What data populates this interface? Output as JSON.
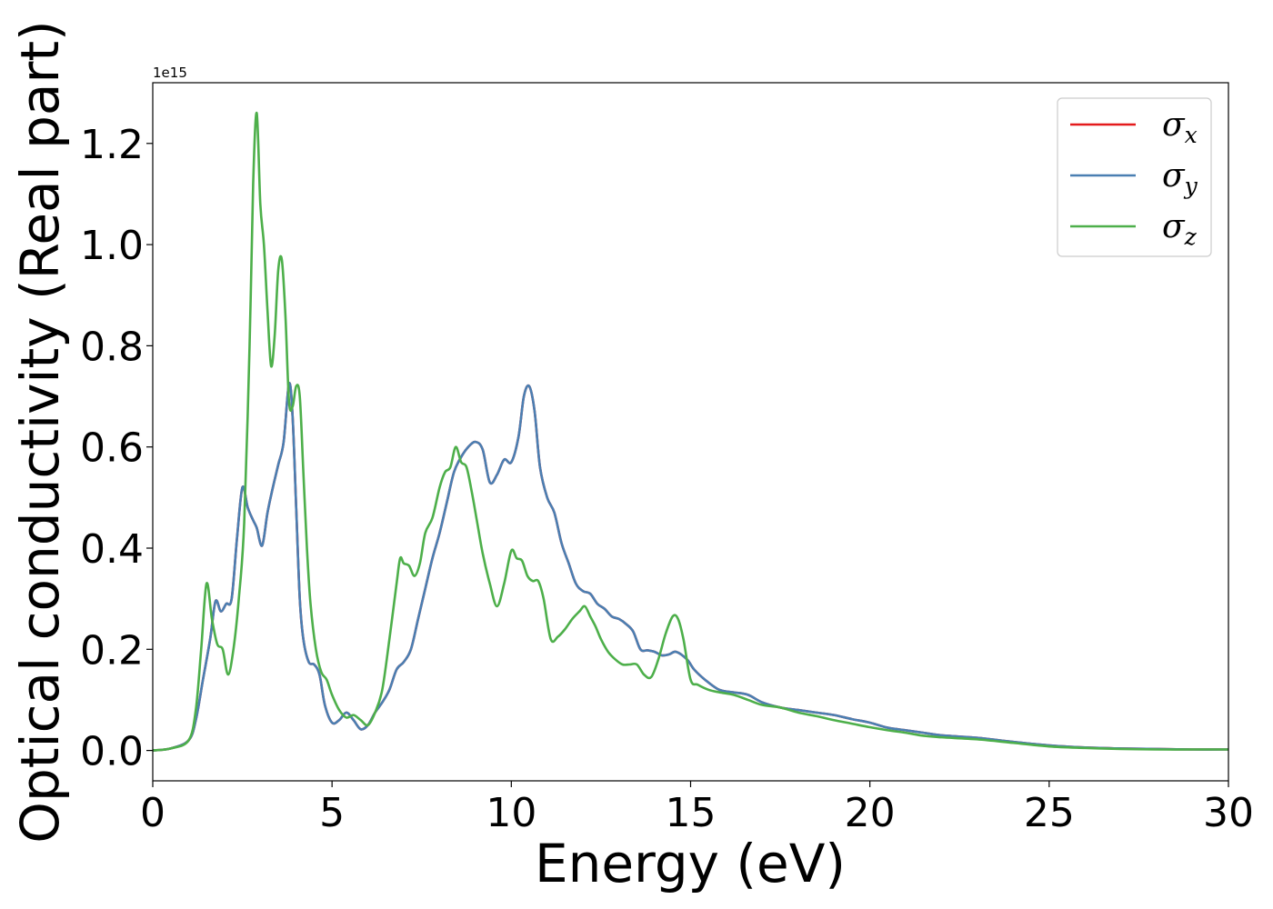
{
  "chart_data": {
    "type": "line",
    "title": "",
    "xlabel": "Energy (eV)",
    "ylabel": "Optical conductivity (Real part)",
    "y_offset_label": "1e15",
    "xlim": [
      0,
      30
    ],
    "ylim": [
      -0.06,
      1.32
    ],
    "x_ticks": [
      0,
      5,
      10,
      15,
      20,
      25,
      30
    ],
    "y_ticks": [
      0.0,
      0.2,
      0.4,
      0.6,
      0.8,
      1.0,
      1.2
    ],
    "x_tick_labels": [
      "0",
      "5",
      "10",
      "15",
      "20",
      "25",
      "30"
    ],
    "y_tick_labels": [
      "0.0",
      "0.2",
      "0.4",
      "0.6",
      "0.8",
      "1.0",
      "1.2"
    ],
    "grid": false,
    "legend_position": "top-right",
    "series": [
      {
        "name": "σx",
        "symbol": "σ",
        "subscript": "x",
        "color": "#e41a1c",
        "x": [
          0,
          0.5,
          1.0,
          1.2,
          1.4,
          1.6,
          1.75,
          1.9,
          2.05,
          2.2,
          2.35,
          2.5,
          2.65,
          2.8,
          2.9,
          3.05,
          3.2,
          3.35,
          3.5,
          3.65,
          3.8,
          3.9,
          4.0,
          4.1,
          4.2,
          4.35,
          4.5,
          4.65,
          4.8,
          5.0,
          5.2,
          5.4,
          5.6,
          5.8,
          6.0,
          6.2,
          6.4,
          6.6,
          6.8,
          7.0,
          7.2,
          7.4,
          7.6,
          7.8,
          8.0,
          8.2,
          8.4,
          8.6,
          8.8,
          9.0,
          9.2,
          9.4,
          9.6,
          9.8,
          10.0,
          10.2,
          10.35,
          10.5,
          10.65,
          10.8,
          11.0,
          11.2,
          11.4,
          11.6,
          11.8,
          12.0,
          12.2,
          12.4,
          12.6,
          12.8,
          13.0,
          13.2,
          13.4,
          13.6,
          13.8,
          14.0,
          14.2,
          14.4,
          14.6,
          14.9,
          15.1,
          15.4,
          15.8,
          16.2,
          16.6,
          17.0,
          17.5,
          18.0,
          18.5,
          19.0,
          19.5,
          20.0,
          20.5,
          21.0,
          21.5,
          22.0,
          23.0,
          24.0,
          25.0,
          26.0,
          27.0,
          28.0,
          29.0,
          30.0
        ],
        "values": [
          0.0,
          0.004,
          0.02,
          0.06,
          0.14,
          0.22,
          0.295,
          0.275,
          0.29,
          0.3,
          0.42,
          0.52,
          0.48,
          0.455,
          0.44,
          0.405,
          0.47,
          0.52,
          0.565,
          0.61,
          0.725,
          0.66,
          0.48,
          0.3,
          0.22,
          0.175,
          0.17,
          0.15,
          0.09,
          0.055,
          0.06,
          0.075,
          0.06,
          0.042,
          0.05,
          0.075,
          0.095,
          0.12,
          0.16,
          0.175,
          0.2,
          0.26,
          0.32,
          0.38,
          0.43,
          0.49,
          0.55,
          0.58,
          0.6,
          0.61,
          0.595,
          0.53,
          0.545,
          0.575,
          0.57,
          0.62,
          0.7,
          0.72,
          0.67,
          0.56,
          0.5,
          0.47,
          0.41,
          0.37,
          0.33,
          0.315,
          0.31,
          0.29,
          0.28,
          0.265,
          0.26,
          0.25,
          0.235,
          0.2,
          0.198,
          0.195,
          0.188,
          0.19,
          0.195,
          0.18,
          0.16,
          0.14,
          0.12,
          0.115,
          0.11,
          0.095,
          0.085,
          0.08,
          0.075,
          0.07,
          0.062,
          0.055,
          0.045,
          0.04,
          0.035,
          0.03,
          0.025,
          0.017,
          0.01,
          0.006,
          0.004,
          0.003,
          0.002,
          0.002
        ]
      },
      {
        "name": "σy",
        "symbol": "σ",
        "subscript": "y",
        "color": "#4a7fb2",
        "x": [
          0,
          0.5,
          1.0,
          1.2,
          1.4,
          1.6,
          1.75,
          1.9,
          2.05,
          2.2,
          2.35,
          2.5,
          2.65,
          2.8,
          2.9,
          3.05,
          3.2,
          3.35,
          3.5,
          3.65,
          3.8,
          3.9,
          4.0,
          4.1,
          4.2,
          4.35,
          4.5,
          4.65,
          4.8,
          5.0,
          5.2,
          5.4,
          5.6,
          5.8,
          6.0,
          6.2,
          6.4,
          6.6,
          6.8,
          7.0,
          7.2,
          7.4,
          7.6,
          7.8,
          8.0,
          8.2,
          8.4,
          8.6,
          8.8,
          9.0,
          9.2,
          9.4,
          9.6,
          9.8,
          10.0,
          10.2,
          10.35,
          10.5,
          10.65,
          10.8,
          11.0,
          11.2,
          11.4,
          11.6,
          11.8,
          12.0,
          12.2,
          12.4,
          12.6,
          12.8,
          13.0,
          13.2,
          13.4,
          13.6,
          13.8,
          14.0,
          14.2,
          14.4,
          14.6,
          14.9,
          15.1,
          15.4,
          15.8,
          16.2,
          16.6,
          17.0,
          17.5,
          18.0,
          18.5,
          19.0,
          19.5,
          20.0,
          20.5,
          21.0,
          21.5,
          22.0,
          23.0,
          24.0,
          25.0,
          26.0,
          27.0,
          28.0,
          29.0,
          30.0
        ],
        "values": [
          0.0,
          0.004,
          0.02,
          0.06,
          0.14,
          0.22,
          0.295,
          0.275,
          0.29,
          0.3,
          0.42,
          0.52,
          0.48,
          0.455,
          0.44,
          0.405,
          0.47,
          0.52,
          0.565,
          0.61,
          0.725,
          0.66,
          0.48,
          0.3,
          0.22,
          0.175,
          0.17,
          0.15,
          0.09,
          0.055,
          0.06,
          0.075,
          0.06,
          0.042,
          0.05,
          0.075,
          0.095,
          0.12,
          0.16,
          0.175,
          0.2,
          0.26,
          0.32,
          0.38,
          0.43,
          0.49,
          0.55,
          0.58,
          0.6,
          0.61,
          0.595,
          0.53,
          0.545,
          0.575,
          0.57,
          0.62,
          0.7,
          0.72,
          0.67,
          0.56,
          0.5,
          0.47,
          0.41,
          0.37,
          0.33,
          0.315,
          0.31,
          0.29,
          0.28,
          0.265,
          0.26,
          0.25,
          0.235,
          0.2,
          0.198,
          0.195,
          0.188,
          0.19,
          0.195,
          0.18,
          0.16,
          0.14,
          0.12,
          0.115,
          0.11,
          0.095,
          0.085,
          0.08,
          0.075,
          0.07,
          0.062,
          0.055,
          0.045,
          0.04,
          0.035,
          0.03,
          0.025,
          0.017,
          0.01,
          0.006,
          0.004,
          0.003,
          0.002,
          0.002
        ]
      },
      {
        "name": "σz",
        "symbol": "σ",
        "subscript": "z",
        "color": "#4daf4a",
        "x": [
          0,
          0.5,
          1.0,
          1.2,
          1.35,
          1.5,
          1.65,
          1.8,
          1.95,
          2.1,
          2.25,
          2.4,
          2.55,
          2.7,
          2.8,
          2.9,
          3.0,
          3.1,
          3.2,
          3.3,
          3.4,
          3.5,
          3.6,
          3.7,
          3.8,
          3.9,
          4.0,
          4.1,
          4.2,
          4.3,
          4.4,
          4.55,
          4.7,
          4.85,
          5.0,
          5.2,
          5.4,
          5.6,
          5.8,
          6.0,
          6.2,
          6.4,
          6.6,
          6.8,
          6.9,
          7.0,
          7.15,
          7.3,
          7.45,
          7.6,
          7.8,
          8.0,
          8.15,
          8.3,
          8.45,
          8.6,
          8.75,
          8.9,
          9.05,
          9.2,
          9.4,
          9.6,
          9.8,
          10.0,
          10.15,
          10.3,
          10.45,
          10.6,
          10.75,
          10.9,
          11.1,
          11.3,
          11.5,
          11.7,
          11.9,
          12.05,
          12.2,
          12.35,
          12.5,
          12.7,
          12.9,
          13.1,
          13.3,
          13.5,
          13.7,
          13.9,
          14.1,
          14.3,
          14.5,
          14.65,
          14.8,
          15.0,
          15.2,
          15.5,
          15.8,
          16.2,
          16.6,
          17.0,
          17.5,
          18.0,
          18.5,
          19.0,
          19.5,
          20.0,
          20.5,
          21.0,
          21.5,
          22.0,
          23.0,
          24.0,
          25.0,
          26.0,
          27.0,
          28.0,
          29.0,
          30.0
        ],
        "values": [
          0.0,
          0.004,
          0.02,
          0.08,
          0.2,
          0.33,
          0.26,
          0.21,
          0.2,
          0.15,
          0.2,
          0.3,
          0.45,
          0.8,
          1.12,
          1.26,
          1.08,
          1.0,
          0.87,
          0.76,
          0.82,
          0.95,
          0.97,
          0.86,
          0.69,
          0.68,
          0.72,
          0.7,
          0.55,
          0.4,
          0.29,
          0.2,
          0.155,
          0.14,
          0.11,
          0.08,
          0.065,
          0.07,
          0.06,
          0.05,
          0.075,
          0.12,
          0.22,
          0.33,
          0.38,
          0.37,
          0.365,
          0.345,
          0.37,
          0.43,
          0.46,
          0.52,
          0.55,
          0.56,
          0.6,
          0.57,
          0.56,
          0.51,
          0.45,
          0.39,
          0.33,
          0.285,
          0.33,
          0.395,
          0.38,
          0.375,
          0.345,
          0.335,
          0.335,
          0.3,
          0.22,
          0.225,
          0.24,
          0.26,
          0.275,
          0.285,
          0.265,
          0.245,
          0.22,
          0.195,
          0.18,
          0.17,
          0.17,
          0.17,
          0.15,
          0.145,
          0.18,
          0.23,
          0.265,
          0.26,
          0.22,
          0.14,
          0.13,
          0.12,
          0.115,
          0.11,
          0.1,
          0.09,
          0.085,
          0.075,
          0.068,
          0.06,
          0.053,
          0.046,
          0.04,
          0.035,
          0.029,
          0.026,
          0.022,
          0.015,
          0.008,
          0.005,
          0.003,
          0.002,
          0.002,
          0.002
        ]
      }
    ]
  }
}
